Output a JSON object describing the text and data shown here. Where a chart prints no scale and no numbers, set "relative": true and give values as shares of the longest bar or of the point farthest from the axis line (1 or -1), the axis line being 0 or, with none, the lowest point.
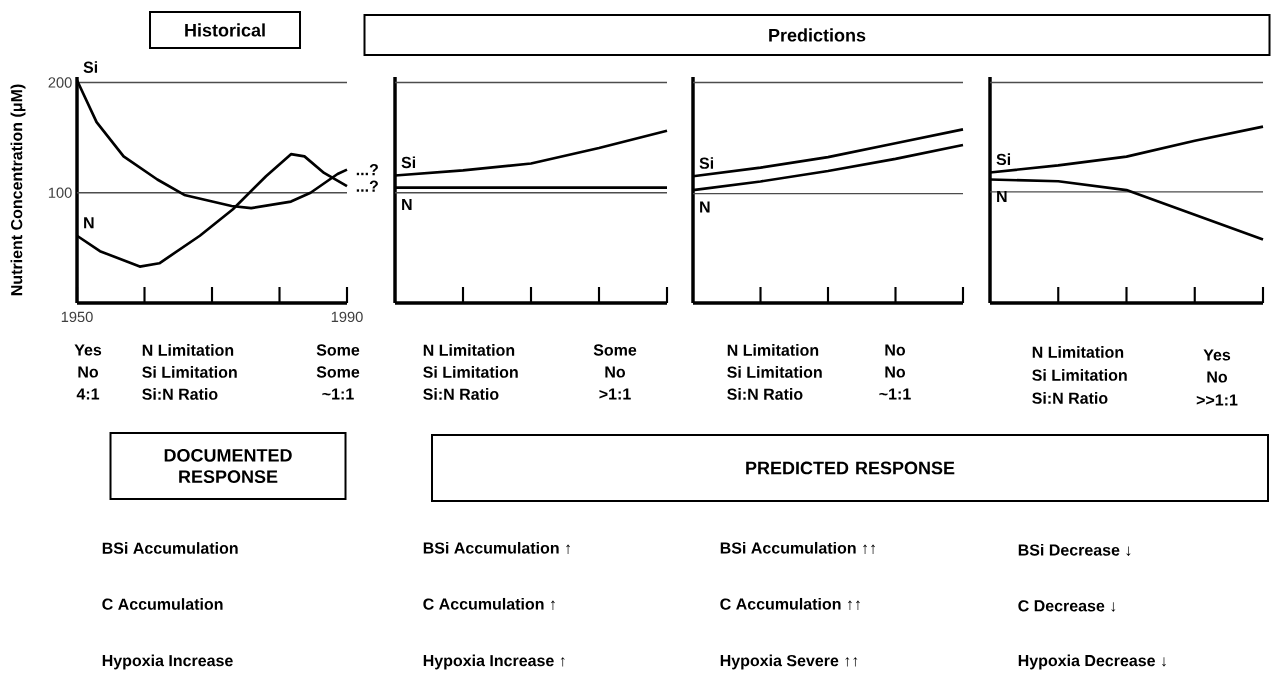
{
  "chart_data": [
    {
      "type": "line",
      "title": "Historical",
      "ylabel": "Nutrient Concentration (μM)",
      "xlim": [
        1950,
        1990
      ],
      "ylim": [
        0,
        205
      ],
      "xticks": [
        1950,
        {
          "value": 1960,
          "label": null
        },
        {
          "value": 1970,
          "label": null
        },
        {
          "value": 1980,
          "label": null
        },
        1990
      ],
      "yticks": [
        100,
        200
      ],
      "series": [
        {
          "name": "Si",
          "color": "#000000",
          "x": [
            1950,
            1952.9,
            1956.9,
            1961.9,
            1965.9,
            1972.9,
            1975.8,
            1981.7,
            1984.6,
            1988.6,
            1990
          ],
          "values": [
            202,
            164,
            133,
            112,
            98,
            88,
            86,
            92,
            100,
            117,
            121
          ]
        },
        {
          "name": "N",
          "color": "#000000",
          "x": [
            1950,
            1953.4,
            1959.3,
            1962.2,
            1968.2,
            1973.1,
            1978,
            1981.7,
            1983.7,
            1986.6,
            1990
          ],
          "values": [
            61,
            47,
            33,
            36,
            61,
            85,
            115,
            135,
            133,
            118,
            106
          ]
        }
      ],
      "ref_lines": [
        {
          "axis": "y",
          "value": 200
        },
        {
          "axis": "y",
          "value": 100
        }
      ],
      "annotations": [
        {
          "text": "...?",
          "x": 1990,
          "y": 121
        },
        {
          "text": "...?",
          "x": 1990,
          "y": 106
        },
        "Yes",
        "No",
        "4:1",
        "N Limitation",
        "Si Limitation",
        "Si:N Ratio",
        "Some",
        "Some",
        "~1:1",
        "DOCUMENTED RESPONSE",
        "BSi Accumulation",
        "C Accumulation",
        "Hypoxia Increase"
      ]
    },
    {
      "type": "line",
      "categories": [
        null,
        null,
        null,
        null,
        null
      ],
      "relative": true,
      "series": [
        {
          "name": "Si",
          "color": "#000000",
          "values": [
            0.74,
            0.77,
            0.81,
            0.9,
            1
          ]
        },
        {
          "name": "N",
          "color": "#000000",
          "values": [
            0.67,
            0.67,
            0.67,
            0.67,
            0.67
          ]
        }
      ],
      "ref_lines": [
        {
          "axis": "y",
          "value": 1.28
        },
        {
          "axis": "y",
          "value": 0.64
        }
      ],
      "annotations": [
        "N Limitation",
        "Si Limitation",
        "Si:N Ratio",
        "Some",
        "No",
        ">1:1",
        "BSi Accumulation ↑",
        "C Accumulation ↑",
        "Hypoxia Increase ↑"
      ]
    },
    {
      "type": "line",
      "title": "Predictions",
      "categories": [
        null,
        null,
        null,
        null,
        null
      ],
      "relative": true,
      "series": [
        {
          "name": "Si",
          "color": "#000000",
          "values": [
            0.73,
            0.78,
            0.84,
            0.92,
            1
          ]
        },
        {
          "name": "N",
          "color": "#000000",
          "values": [
            0.65,
            0.7,
            0.76,
            0.83,
            0.91
          ]
        }
      ],
      "ref_lines": [
        {
          "axis": "y",
          "value": 1.27
        },
        {
          "axis": "y",
          "value": 0.63
        }
      ],
      "annotations": [
        "N Limitation",
        "Si Limitation",
        "Si:N Ratio",
        "No",
        "No",
        "~1:1",
        "BSi Accumulation ↑↑",
        "C Accumulation ↑↑",
        "Hypoxia Severe ↑↑",
        "PREDICTED RESPONSE"
      ]
    },
    {
      "type": "line",
      "categories": [
        null,
        null,
        null,
        null,
        null
      ],
      "relative": true,
      "series": [
        {
          "name": "Si",
          "color": "#000000",
          "values": [
            0.74,
            0.78,
            0.83,
            0.92,
            1
          ]
        },
        {
          "name": "N",
          "color": "#000000",
          "values": [
            0.7,
            0.69,
            0.64,
            0.5,
            0.36
          ]
        }
      ],
      "ref_lines": [
        {
          "axis": "y",
          "value": 1.25
        },
        {
          "axis": "y",
          "value": 0.63
        }
      ],
      "annotations": [
        "N Limitation",
        "Si Limitation",
        "Si:N Ratio",
        "Yes",
        "No",
        ">>1:1",
        "BSi Decrease ↓",
        "C Decrease ↓",
        "Hypoxia Decrease ↓"
      ]
    }
  ]
}
